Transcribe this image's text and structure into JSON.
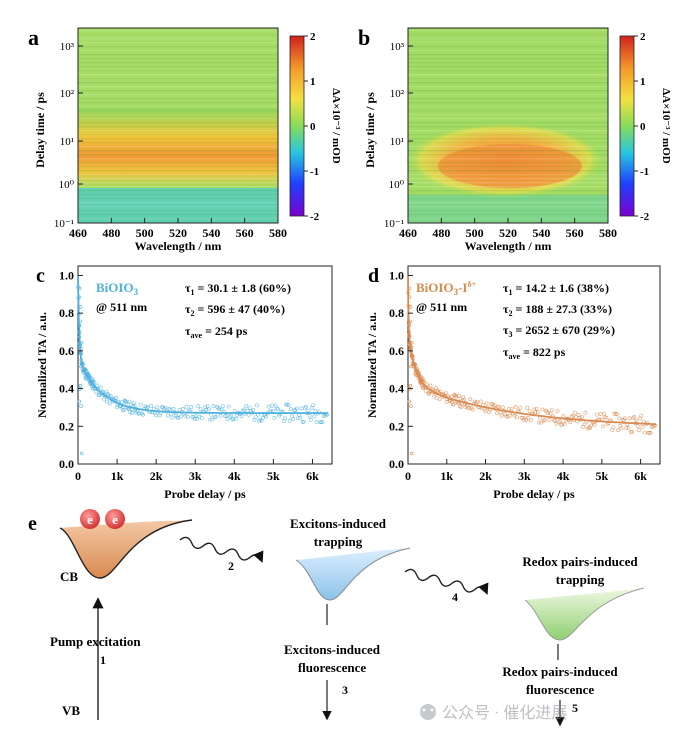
{
  "panels": {
    "a": {
      "label": "a",
      "sample_peak_band": "2-20 ps"
    },
    "b": {
      "label": "b"
    },
    "c": {
      "label": "c",
      "legend_name": "BiOIO",
      "legend_name_sub": "3",
      "legend_probe": "@ 511 nm",
      "tau1": "τ",
      "tau1_sub": "1",
      "tau1_val": " = 30.1 ± 1.8 (60%)",
      "tau2": "τ",
      "tau2_sub": "2",
      "tau2_val": " = 596 ± 47 (40%)",
      "tauave": "τ",
      "tauave_sub": "ave",
      "tauave_val": " = 254 ps"
    },
    "d": {
      "label": "d",
      "legend_name": "BiOIO",
      "legend_name_sub": "3",
      "legend_name_sup": "-I",
      "legend_name_sup2": "δ+",
      "legend_probe": "@ 511 nm",
      "tau1": "τ",
      "tau1_sub": "1",
      "tau1_val": " = 14.2 ± 1.6 (38%)",
      "tau2": "τ",
      "tau2_sub": "2",
      "tau2_val": " = 188 ± 27.3 (33%)",
      "tau3": "τ",
      "tau3_sub": "3",
      "tau3_val": " = 2652 ± 670 (29%)",
      "tauave": "τ",
      "tauave_sub": "ave",
      "tauave_val": " = 822 ps"
    },
    "e": {
      "label": "e"
    }
  },
  "axes": {
    "delay_label": "Delay time / ps",
    "wavelength_label": "Wavelength / nm",
    "colorbar_label": "ΔA×10⁻³ / mOD",
    "colorbar_ticks": [
      "2",
      "1",
      "0",
      "-1",
      "-2"
    ],
    "wavelength_ticks": [
      "460",
      "480",
      "500",
      "520",
      "540",
      "560",
      "580"
    ],
    "delay_ticks": [
      "10³",
      "10²",
      "10¹",
      "10⁰",
      "10⁻¹"
    ],
    "ta_label": "Normalized TA / a.u.",
    "probe_label": "Probe delay / ps",
    "ta_ticks": [
      "1.0",
      "0.8",
      "0.6",
      "0.4",
      "0.2",
      "0.0"
    ],
    "probe_ticks": [
      "0",
      "1k",
      "2k",
      "3k",
      "4k",
      "5k",
      "6k"
    ]
  },
  "scheme": {
    "cb_label": "CB",
    "vb_label": "VB",
    "electron": "e",
    "pump": "Pump excitation",
    "step1": "1",
    "step2": "2",
    "step3": "3",
    "step4": "4",
    "step5": "5",
    "exciton_trap_1": "Excitons-induced",
    "exciton_trap_2": "trapping",
    "exciton_fl_1": "Excitons-induced",
    "exciton_fl_2": "fluorescence",
    "redox_trap_1": "Redox pairs-induced",
    "redox_trap_2": "trapping",
    "redox_fl_1": "Redox pairs-induced",
    "redox_fl_2": "fluorescence"
  },
  "watermark": "公众号 · 催化进展",
  "chart_data": [
    {
      "type": "heatmap",
      "title": "a",
      "xlabel": "Wavelength / nm",
      "ylabel": "Delay time / ps",
      "xlim": [
        460,
        580
      ],
      "ylim_log10": [
        -1,
        3.5
      ],
      "colorbar": [
        -2,
        2
      ],
      "description_values": {
        "max_signal_delay_ps": [
          2,
          20
        ],
        "max_signal_wavelength_nm": [
          480,
          560
        ]
      }
    },
    {
      "type": "heatmap",
      "title": "b",
      "xlabel": "Wavelength / nm",
      "ylabel": "Delay time / ps",
      "xlim": [
        460,
        580
      ],
      "ylim_log10": [
        -1,
        3.5
      ],
      "colorbar": [
        -2,
        2
      ],
      "description_values": {
        "max_signal_delay_ps": [
          1,
          20
        ],
        "max_signal_wavelength_nm": [
          470,
          565
        ]
      }
    },
    {
      "type": "scatter",
      "title": "c",
      "xlabel": "Probe delay / ps",
      "ylabel": "Normalized TA / a.u.",
      "xlim": [
        0,
        6500
      ],
      "ylim": [
        0,
        1.05
      ],
      "series": [
        {
          "name": "BiOIO3 @ 511 nm",
          "color": "#4fb0dd",
          "fit": {
            "A1": 0.6,
            "tau1": 30.1,
            "A2": 0.4,
            "tau2": 596,
            "offset": 0.27
          }
        }
      ]
    },
    {
      "type": "scatter",
      "title": "d",
      "xlabel": "Probe delay / ps",
      "ylabel": "Normalized TA / a.u.",
      "xlim": [
        0,
        6500
      ],
      "ylim": [
        0,
        1.05
      ],
      "series": [
        {
          "name": "BiOIO3-Iδ+ @ 511 nm",
          "color": "#d98a50",
          "fit": {
            "A1": 0.38,
            "tau1": 14.2,
            "A2": 0.33,
            "tau2": 188,
            "A3": 0.29,
            "tau3": 2652,
            "offset": 0.19
          }
        }
      ]
    }
  ]
}
